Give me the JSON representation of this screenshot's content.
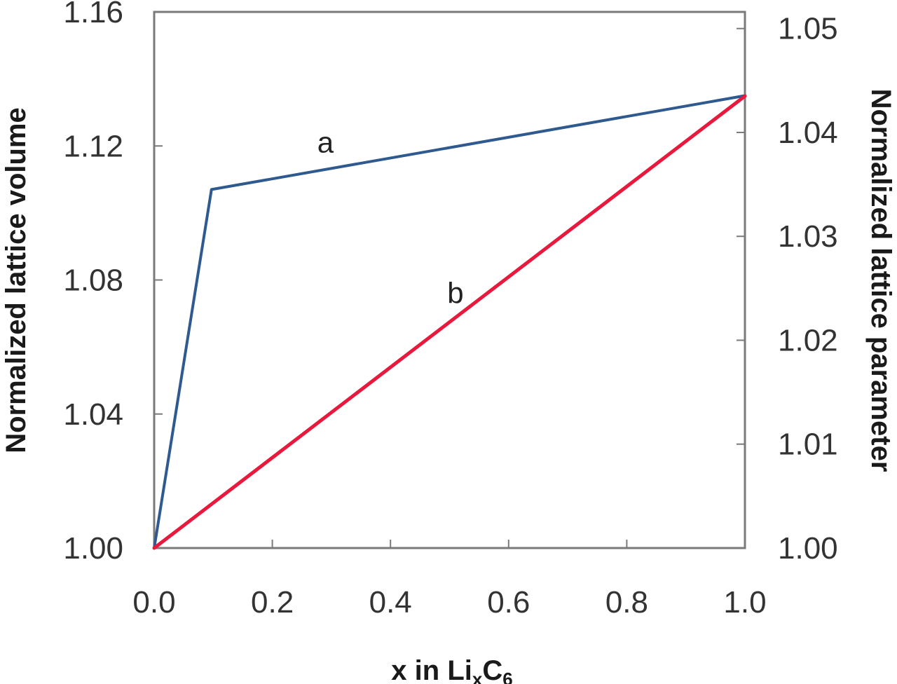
{
  "chart_data": {
    "type": "line",
    "title": "",
    "xlabel": {
      "main": "x in Li",
      "sub1": "x",
      "mid": "C",
      "sub2": "6"
    },
    "ylabel_left": "Normalized lattice volume",
    "ylabel_right": "Normalized lattice parameter",
    "xlim": [
      0,
      1
    ],
    "ylim_left": [
      1.0,
      1.16
    ],
    "ylim_right": [
      1.0,
      1.0516
    ],
    "x_ticks": [
      "0.0",
      "0.2",
      "0.4",
      "0.6",
      "0.8",
      "1.0"
    ],
    "y_left_ticks": [
      "1.00",
      "1.04",
      "1.08",
      "1.12",
      "1.16"
    ],
    "y_right_ticks": [
      "1.00",
      "1.01",
      "1.02",
      "1.03",
      "1.04",
      "1.05"
    ],
    "grid": false,
    "legend": "none",
    "series": [
      {
        "name": "a",
        "axis": "left",
        "color": "#2f5a8f",
        "x": [
          0.0,
          0.097,
          1.0
        ],
        "y": [
          1.0,
          1.107,
          1.135
        ]
      },
      {
        "name": "b",
        "axis": "right",
        "color": "#e8193c",
        "x": [
          0.0,
          1.0
        ],
        "y": [
          1.0,
          1.0435
        ]
      }
    ],
    "annotations": [
      {
        "text": "a",
        "x": 0.29,
        "y_left": 1.121
      },
      {
        "text": "b",
        "x": 0.51,
        "y_left": 1.076
      }
    ]
  }
}
